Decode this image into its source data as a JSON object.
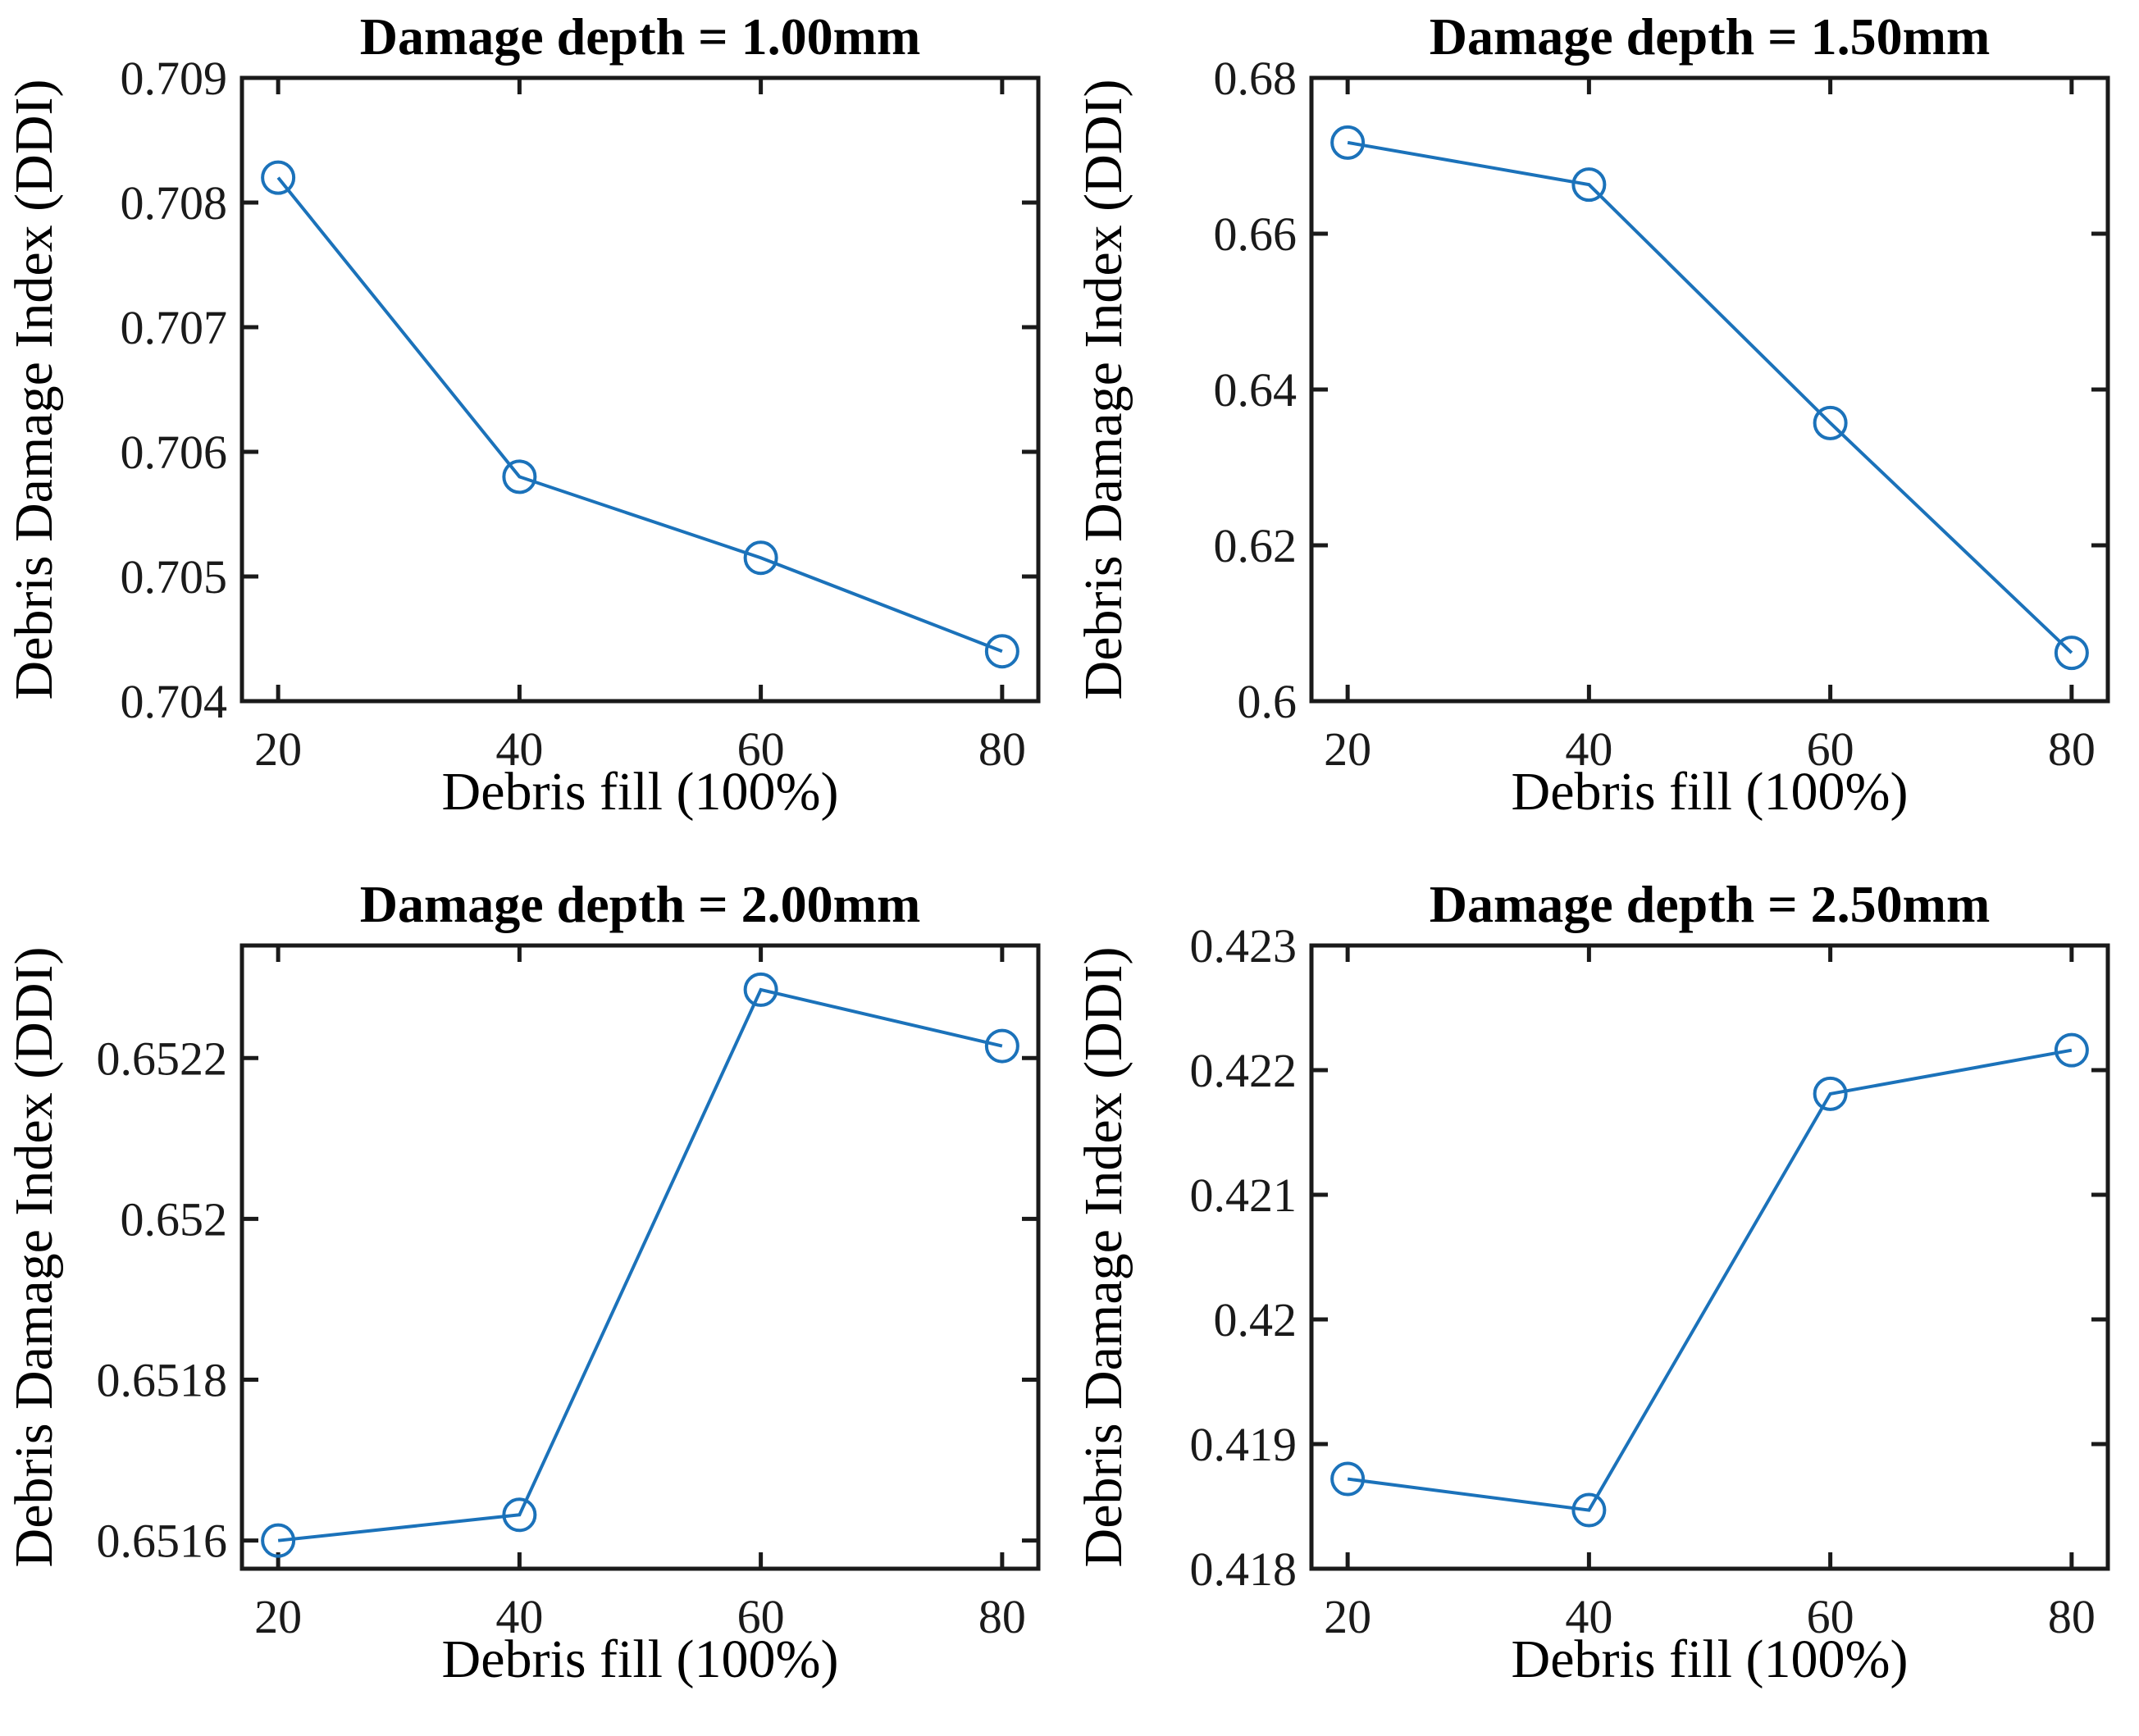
{
  "figure": {
    "type": "matlab-style-subplot-grid",
    "rows": 2,
    "cols": 2,
    "background": "#ffffff",
    "line_color": "#1b72ba",
    "axis_color": "#1a1a1a",
    "marker": "open-circle"
  },
  "chart_data": [
    {
      "type": "line",
      "title": "Damage depth = 1.00mm",
      "xlabel": "Debris fill (100%)",
      "ylabel": "Debris Damage Index (DDI)",
      "x": [
        20,
        40,
        60,
        80
      ],
      "y": [
        0.7082,
        0.7058,
        0.70515,
        0.7044
      ],
      "xlim": [
        17,
        83
      ],
      "ylim": [
        0.704,
        0.709
      ],
      "xticks": [
        20,
        40,
        60,
        80
      ],
      "xtick_labels": [
        "20",
        "40",
        "60",
        "80"
      ],
      "yticks": [
        0.704,
        0.705,
        0.706,
        0.707,
        0.708,
        0.709
      ],
      "ytick_labels": [
        "0.704",
        "0.705",
        "0.706",
        "0.707",
        "0.708",
        "0.709"
      ],
      "grid": false,
      "legend": "none"
    },
    {
      "type": "line",
      "title": "Damage depth = 1.50mm",
      "xlabel": "Debris fill (100%)",
      "ylabel": "Debris Damage Index (DDI)",
      "x": [
        20,
        40,
        60,
        80
      ],
      "y": [
        0.6717,
        0.6663,
        0.6357,
        0.6062
      ],
      "xlim": [
        17,
        83
      ],
      "ylim": [
        0.6,
        0.68
      ],
      "xticks": [
        20,
        40,
        60,
        80
      ],
      "xtick_labels": [
        "20",
        "40",
        "60",
        "80"
      ],
      "yticks": [
        0.6,
        0.62,
        0.64,
        0.66,
        0.68
      ],
      "ytick_labels": [
        "0.6",
        "0.62",
        "0.64",
        "0.66",
        "0.68"
      ],
      "grid": false,
      "legend": "none"
    },
    {
      "type": "line",
      "title": "Damage depth = 2.00mm",
      "xlabel": "Debris fill (100%)",
      "ylabel": "Debris Damage Index (DDI)",
      "x": [
        20,
        40,
        60,
        80
      ],
      "y": [
        0.6516,
        0.651632,
        0.652285,
        0.652215
      ],
      "xlim": [
        17,
        83
      ],
      "ylim": [
        0.651565,
        0.65234
      ],
      "xticks": [
        20,
        40,
        60,
        80
      ],
      "xtick_labels": [
        "20",
        "40",
        "60",
        "80"
      ],
      "yticks": [
        0.6516,
        0.6518,
        0.652,
        0.6522
      ],
      "ytick_labels": [
        "0.6516",
        "0.6518",
        "0.652",
        "0.6522"
      ],
      "grid": false,
      "legend": "none"
    },
    {
      "type": "line",
      "title": "Damage depth = 2.50mm",
      "xlabel": "Debris fill (100%)",
      "ylabel": "Debris Damage Index (DDI)",
      "x": [
        20,
        40,
        60,
        80
      ],
      "y": [
        0.41872,
        0.41847,
        0.42181,
        0.42216
      ],
      "xlim": [
        17,
        83
      ],
      "ylim": [
        0.418,
        0.423
      ],
      "xticks": [
        20,
        40,
        60,
        80
      ],
      "xtick_labels": [
        "20",
        "40",
        "60",
        "80"
      ],
      "yticks": [
        0.418,
        0.419,
        0.42,
        0.421,
        0.422,
        0.423
      ],
      "ytick_labels": [
        "0.418",
        "0.419",
        "0.42",
        "0.421",
        "0.422",
        "0.423"
      ],
      "grid": false,
      "legend": "none"
    }
  ]
}
